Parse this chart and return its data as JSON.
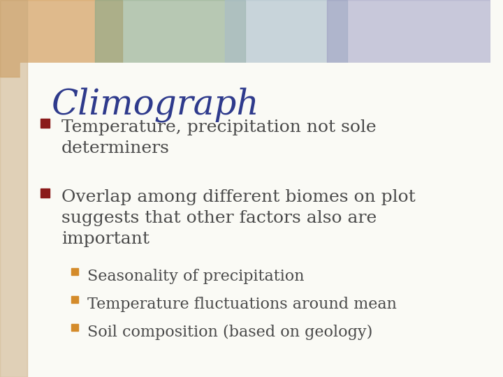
{
  "title": "Climograph",
  "title_color": "#2E3A8C",
  "title_fontsize": 36,
  "bullet1": "Temperature, precipitation not sole\ndeterminers",
  "bullet2": "Overlap among different biomes on plot\nsuggests that other factors also are\nimportant",
  "sub_bullets": [
    "Seasonality of precipitation",
    "Temperature fluctuations around mean",
    "Soil composition (based on geology)"
  ],
  "bullet_color": "#8B1A1A",
  "sub_bullet_color": "#D48B2A",
  "text_color": "#4A4A4A",
  "body_fontsize": 18,
  "sub_fontsize": 16,
  "bg_color": "#F5F0E8",
  "slide_bg": "#FAFAF5",
  "header_colors": [
    "#D4A855",
    "#8FBC8F",
    "#B8D4C8",
    "#9BA8C8"
  ],
  "left_margin_color": "#D4B896"
}
